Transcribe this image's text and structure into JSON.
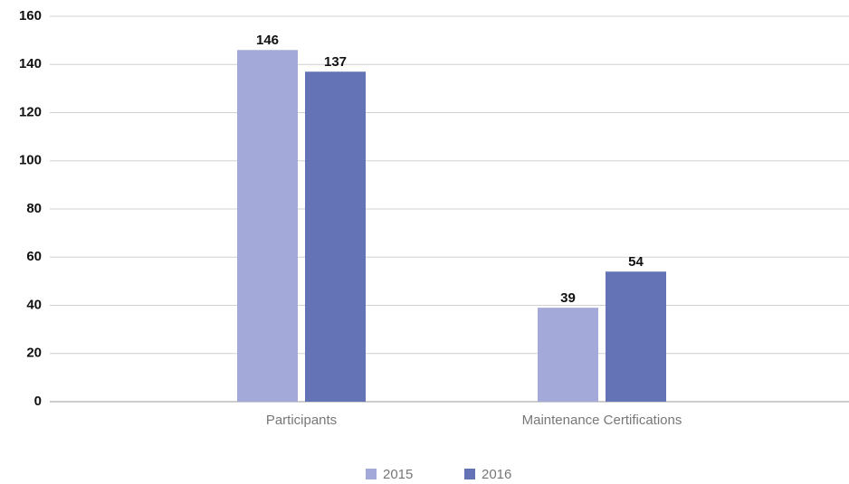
{
  "chart_data": {
    "type": "bar",
    "categories": [
      "Participants",
      "Maintenance Certifications"
    ],
    "series": [
      {
        "name": "2015",
        "color": "#a3a9d8",
        "values": [
          146,
          39
        ]
      },
      {
        "name": "2016",
        "color": "#6373b5",
        "values": [
          137,
          54
        ]
      }
    ],
    "ylim": [
      0,
      160
    ],
    "yticks": [
      0,
      20,
      40,
      60,
      80,
      100,
      120,
      140,
      160
    ],
    "grid": true,
    "legend": "bottom"
  }
}
